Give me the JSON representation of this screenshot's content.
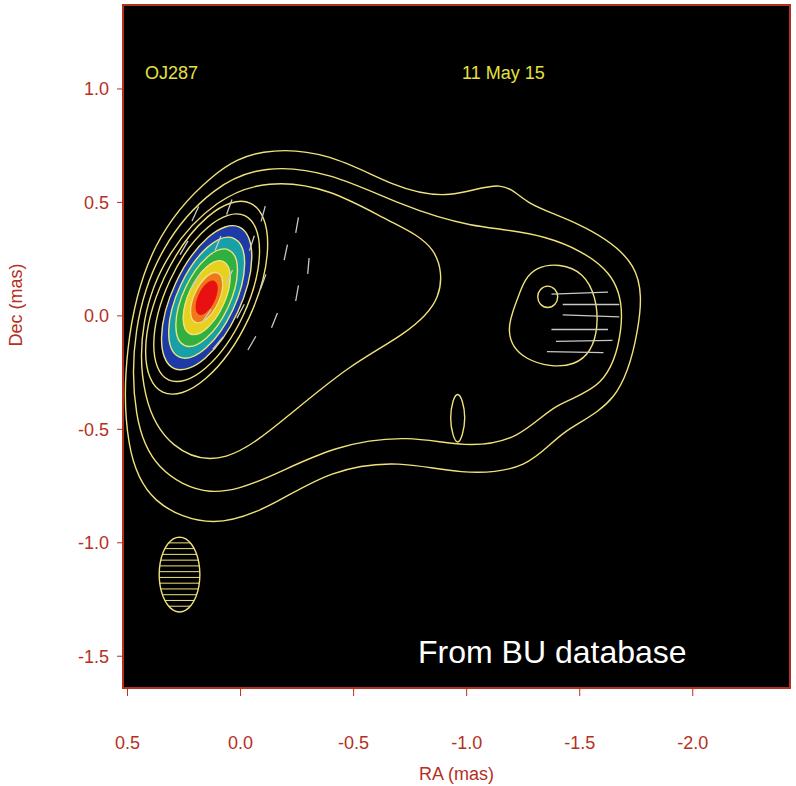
{
  "chart_data": {
    "type": "contour",
    "title": "OJ287",
    "subtitle": "11 May 15",
    "x_label": "RA (mas)",
    "y_label": "Dec (mas)",
    "annotations": [
      "From BU database"
    ],
    "xlim": [
      0.52,
      -2.43
    ],
    "ylim": [
      -1.64,
      1.37
    ],
    "xticks": [
      0.5,
      {
        "value": 0,
        "label": "0.0"
      },
      -0.5,
      {
        "value": -1,
        "label": "-1.0"
      },
      -1.5,
      {
        "value": -2,
        "label": "-2.0"
      }
    ],
    "yticks": [
      {
        "value": 1,
        "label": "1.0"
      },
      0.5,
      {
        "value": 0,
        "label": "0.0"
      },
      -0.5,
      {
        "value": -1,
        "label": "-1.0"
      },
      -1.5
    ],
    "color": "#f0e27a",
    "image": [
      {
        "color": "#1c3aa8",
        "points": [
          [
            -0.011,
            0.425
          ],
          [
            -0.071,
            0.274
          ],
          [
            -0.002,
            0.009
          ],
          [
            0.156,
            -0.214
          ],
          [
            0.311,
            -0.265
          ],
          [
            0.371,
            -0.114
          ],
          [
            0.302,
            0.151
          ],
          [
            0.144,
            0.374
          ]
        ]
      },
      {
        "color": "#18a0a8",
        "points": [
          [
            0.015,
            0.369
          ],
          [
            -0.036,
            0.242
          ],
          [
            0.022,
            0.02
          ],
          [
            0.155,
            -0.167
          ],
          [
            0.285,
            -0.209
          ],
          [
            0.336,
            -0.082
          ],
          [
            0.278,
            0.14
          ],
          [
            0.145,
            0.327
          ]
        ]
      },
      {
        "color": "#30b040",
        "points": [
          [
            0.041,
            0.313
          ],
          [
            -0.001,
            0.21
          ],
          [
            0.046,
            0.031
          ],
          [
            0.154,
            -0.119
          ],
          [
            0.259,
            -0.153
          ],
          [
            0.301,
            -0.05
          ],
          [
            0.254,
            0.129
          ],
          [
            0.146,
            0.279
          ]
        ]
      },
      {
        "color": "#e8d020",
        "points": [
          [
            0.068,
            0.256
          ],
          [
            0.035,
            0.178
          ],
          [
            0.07,
            0.043
          ],
          [
            0.151,
            -0.071
          ],
          [
            0.232,
            -0.096
          ],
          [
            0.265,
            -0.018
          ],
          [
            0.23,
            0.117
          ],
          [
            0.149,
            0.231
          ]
        ]
      },
      {
        "color": "#f07818",
        "points": [
          [
            0.094,
            0.2
          ],
          [
            0.071,
            0.146
          ],
          [
            0.094,
            0.054
          ],
          [
            0.15,
            -0.023
          ],
          [
            0.206,
            -0.04
          ],
          [
            0.229,
            0.014
          ],
          [
            0.206,
            0.106
          ],
          [
            0.15,
            0.183
          ]
        ]
      },
      {
        "color": "#e81010",
        "points": [
          [
            0.113,
            0.16
          ],
          [
            0.098,
            0.125
          ],
          [
            0.114,
            0.063
          ],
          [
            0.151,
            0.011
          ],
          [
            0.187,
            0.0
          ],
          [
            0.202,
            0.035
          ],
          [
            0.186,
            0.097
          ],
          [
            0.149,
            0.149
          ]
        ]
      }
    ],
    "contours": [
      [
        [
          0.509,
          -0.591
        ],
        [
          0.518,
          -0.15
        ],
        [
          0.403,
          0.335
        ],
        [
          0.115,
          0.643
        ],
        [
          -0.084,
          0.74
        ],
        [
          -0.394,
          0.723
        ],
        [
          -0.681,
          0.564
        ],
        [
          -0.925,
          0.511
        ],
        [
          -1.168,
          0.608
        ],
        [
          -1.257,
          0.489
        ],
        [
          -1.478,
          0.423
        ],
        [
          -1.788,
          0.238
        ],
        [
          -1.765,
          -0.062
        ],
        [
          -1.677,
          -0.392
        ],
        [
          -1.412,
          -0.502
        ],
        [
          -1.279,
          -0.679
        ],
        [
          -0.969,
          -0.701
        ],
        [
          -0.704,
          -0.635
        ],
        [
          -0.394,
          -0.679
        ],
        [
          -0.15,
          -0.833
        ],
        [
          0.115,
          -0.943
        ],
        [
          0.403,
          -0.833
        ]
      ],
      [
        [
          0.473,
          -0.458
        ],
        [
          0.482,
          -0.062
        ],
        [
          0.358,
          0.313
        ],
        [
          0.115,
          0.577
        ],
        [
          -0.106,
          0.665
        ],
        [
          -0.394,
          0.635
        ],
        [
          -0.704,
          0.489
        ],
        [
          -1.013,
          0.388
        ],
        [
          -1.345,
          0.37
        ],
        [
          -1.677,
          0.203
        ],
        [
          -1.699,
          -0.062
        ],
        [
          -1.611,
          -0.326
        ],
        [
          -1.389,
          -0.379
        ],
        [
          -1.235,
          -0.546
        ],
        [
          -0.991,
          -0.582
        ],
        [
          -0.748,
          -0.524
        ],
        [
          -0.416,
          -0.569
        ],
        [
          -0.128,
          -0.714
        ],
        [
          0.137,
          -0.811
        ],
        [
          0.381,
          -0.679
        ]
      ],
      [
        [
          0.438,
          -0.37
        ],
        [
          0.447,
          -0.018
        ],
        [
          0.323,
          0.291
        ],
        [
          0.102,
          0.52
        ],
        [
          -0.119,
          0.599
        ],
        [
          -0.394,
          0.564
        ],
        [
          -0.659,
          0.414
        ],
        [
          -0.881,
          0.313
        ],
        [
          -0.903,
          0.071
        ],
        [
          -0.726,
          -0.084
        ],
        [
          -0.482,
          -0.216
        ],
        [
          -0.217,
          -0.436
        ],
        [
          0.071,
          -0.67
        ],
        [
          0.314,
          -0.591
        ]
      ],
      [
        [
          -1.226,
          0.071
        ],
        [
          -1.279,
          0.238
        ],
        [
          -1.544,
          0.225
        ],
        [
          -1.602,
          -0.062
        ],
        [
          -1.5,
          -0.247
        ],
        [
          -1.235,
          -0.203
        ],
        [
          -1.168,
          -0.062
        ]
      ],
      [
        [
          -1.407,
          0.084
        ],
        [
          -1.394,
          0.119
        ],
        [
          -1.358,
          0.137
        ],
        [
          -1.323,
          0.119
        ],
        [
          -1.31,
          0.084
        ],
        [
          -1.323,
          0.048
        ],
        [
          -1.358,
          0.031
        ],
        [
          -1.394,
          0.048
        ]
      ],
      [
        [
          -0.996,
          -0.45
        ],
        [
          -0.982,
          -0.37
        ],
        [
          -0.96,
          -0.335
        ],
        [
          -0.938,
          -0.37
        ],
        [
          -0.925,
          -0.45
        ],
        [
          -0.938,
          -0.529
        ],
        [
          -0.96,
          -0.569
        ],
        [
          -0.982,
          -0.529
        ]
      ],
      [
        [
          -0.065,
          0.541
        ],
        [
          -0.149,
          0.337
        ],
        [
          -0.058,
          -0.017
        ],
        [
          0.155,
          -0.315
        ],
        [
          0.365,
          -0.381
        ],
        [
          0.449,
          -0.177
        ],
        [
          0.358,
          0.177
        ],
        [
          0.145,
          0.475
        ]
      ],
      [
        [
          -0.037,
          0.481
        ],
        [
          -0.109,
          0.304
        ],
        [
          -0.03,
          -0.004
        ],
        [
          0.155,
          -0.263
        ],
        [
          0.337,
          -0.321
        ],
        [
          0.409,
          -0.144
        ],
        [
          0.33,
          0.164
        ],
        [
          0.145,
          0.423
        ]
      ],
      [
        [
          -0.011,
          0.425
        ],
        [
          -0.071,
          0.274
        ],
        [
          -0.002,
          0.009
        ],
        [
          0.156,
          -0.214
        ],
        [
          0.311,
          -0.265
        ],
        [
          0.371,
          -0.114
        ],
        [
          0.302,
          0.151
        ],
        [
          0.144,
          0.374
        ]
      ],
      [
        [
          0.015,
          0.369
        ],
        [
          -0.036,
          0.242
        ],
        [
          0.022,
          0.02
        ],
        [
          0.155,
          -0.167
        ],
        [
          0.285,
          -0.209
        ],
        [
          0.336,
          -0.082
        ],
        [
          0.278,
          0.14
        ],
        [
          0.145,
          0.327
        ]
      ],
      [
        [
          0.041,
          0.313
        ],
        [
          -0.001,
          0.21
        ],
        [
          0.046,
          0.031
        ],
        [
          0.154,
          -0.119
        ],
        [
          0.259,
          -0.153
        ],
        [
          0.301,
          -0.05
        ],
        [
          0.254,
          0.129
        ],
        [
          0.146,
          0.279
        ]
      ],
      [
        [
          0.068,
          0.256
        ],
        [
          0.035,
          0.178
        ],
        [
          0.07,
          0.043
        ],
        [
          0.151,
          -0.071
        ],
        [
          0.232,
          -0.096
        ],
        [
          0.265,
          -0.018
        ],
        [
          0.23,
          0.117
        ],
        [
          0.149,
          0.231
        ]
      ],
      [
        [
          0.094,
          0.2
        ],
        [
          0.071,
          0.146
        ],
        [
          0.094,
          0.054
        ],
        [
          0.15,
          -0.023
        ],
        [
          0.206,
          -0.04
        ],
        [
          0.229,
          0.014
        ],
        [
          0.206,
          0.106
        ],
        [
          0.15,
          0.183
        ]
      ]
    ],
    "polarization_vectors": {
      "color": "#c8c8c8",
      "x": [
        0.2,
        0.05,
        -0.1,
        -0.25,
        0.25,
        0.1,
        -0.05,
        -0.2,
        -0.3,
        0.2,
        0.05,
        -0.1,
        -0.25,
        0.15,
        0.0,
        -0.15,
        0.1,
        -0.05,
        -1.5,
        -1.55,
        -1.55,
        -1.5,
        -1.52,
        -1.48
      ],
      "y": [
        0.45,
        0.48,
        0.45,
        0.4,
        0.3,
        0.32,
        0.32,
        0.28,
        0.22,
        0.15,
        0.17,
        0.15,
        0.1,
        0.0,
        0.02,
        -0.02,
        -0.12,
        -0.12,
        0.1,
        0.05,
        0.0,
        -0.06,
        -0.11,
        -0.16
      ],
      "angle": [
        155,
        160,
        165,
        170,
        150,
        158,
        162,
        168,
        175,
        148,
        155,
        160,
        170,
        145,
        152,
        158,
        140,
        150,
        92,
        90,
        88,
        90,
        91,
        89
      ],
      "length": [
        0.07,
        0.07,
        0.07,
        0.07,
        0.07,
        0.07,
        0.07,
        0.07,
        0.07,
        0.07,
        0.07,
        0.07,
        0.07,
        0.07,
        0.07,
        0.07,
        0.07,
        0.07,
        0.25,
        0.25,
        0.25,
        0.25,
        0.25,
        0.25
      ]
    },
    "beam": {
      "x": 0.27,
      "y": -1.14,
      "width": 0.18,
      "height": 0.33,
      "color": "#f0e27a"
    }
  }
}
